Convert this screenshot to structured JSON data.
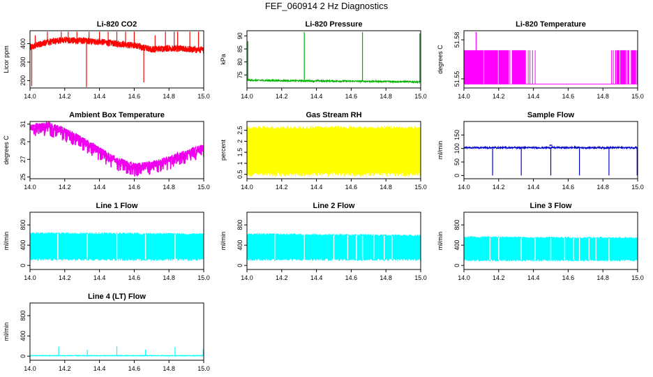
{
  "figure_title": "FEF_060914  2 Hz Diagnostics",
  "chart_data": [
    {
      "type": "line",
      "title": "Li-820 CO2",
      "ylabel": "Licor ppm",
      "color": "#ff0000",
      "style": "noisy",
      "xlim": [
        14.0,
        15.0
      ],
      "ylim": [
        160,
        470
      ],
      "yticks": [
        200,
        300,
        400
      ],
      "xticks": [
        14.0,
        14.2,
        14.4,
        14.6,
        14.8,
        15.0
      ],
      "series": [
        {
          "x": [
            14.0,
            14.1,
            14.2,
            14.3,
            14.4,
            14.5,
            14.6,
            14.7,
            14.8,
            14.9,
            15.0
          ],
          "y": [
            380,
            410,
            420,
            415,
            410,
            400,
            390,
            370,
            375,
            370,
            365
          ]
        }
      ],
      "band": 18,
      "spikes": [
        {
          "x": 14.01,
          "y": 170
        },
        {
          "x": 14.03,
          "y": 445
        },
        {
          "x": 14.1,
          "y": 465
        },
        {
          "x": 14.18,
          "y": 465
        },
        {
          "x": 14.22,
          "y": 465
        },
        {
          "x": 14.27,
          "y": 465
        },
        {
          "x": 14.325,
          "y": 165
        },
        {
          "x": 14.34,
          "y": 465
        },
        {
          "x": 14.4,
          "y": 465
        },
        {
          "x": 14.45,
          "y": 465
        },
        {
          "x": 14.5,
          "y": 465
        },
        {
          "x": 14.55,
          "y": 465
        },
        {
          "x": 14.6,
          "y": 465
        },
        {
          "x": 14.655,
          "y": 190
        },
        {
          "x": 14.72,
          "y": 445
        },
        {
          "x": 14.78,
          "y": 465
        },
        {
          "x": 14.83,
          "y": 465
        },
        {
          "x": 14.85,
          "y": 465
        },
        {
          "x": 14.92,
          "y": 465
        },
        {
          "x": 14.97,
          "y": 465
        }
      ]
    },
    {
      "type": "line",
      "title": "Li-820 Pressure",
      "ylabel": "kPa",
      "color": "#00b000",
      "style": "flat",
      "xlim": [
        14.0,
        15.0
      ],
      "ylim": [
        70,
        92
      ],
      "yticks": [
        75,
        80,
        85,
        90
      ],
      "xticks": [
        14.0,
        14.2,
        14.4,
        14.6,
        14.8,
        15.0
      ],
      "series": [
        {
          "x": [
            14.0,
            14.2,
            14.4,
            14.6,
            14.8,
            15.0
          ],
          "y": [
            73.0,
            72.8,
            72.7,
            72.6,
            72.5,
            72.3
          ]
        }
      ],
      "band": 0.3,
      "spikes": [
        {
          "x": 14.005,
          "y": 88
        },
        {
          "x": 14.33,
          "y": 91.5
        },
        {
          "x": 14.665,
          "y": 91.5
        },
        {
          "x": 14.995,
          "y": 91
        }
      ]
    },
    {
      "type": "line",
      "title": "Li-820 Temperature",
      "ylabel": "degrees C",
      "color": "#ff00ff",
      "style": "binary",
      "xlim": [
        14.0,
        15.0
      ],
      "ylim": [
        51.543,
        51.587
      ],
      "yticks": [
        51.55,
        51.58
      ],
      "extra_ytick_labels": [
        "51.55",
        "51.58"
      ],
      "xticks": [
        14.0,
        14.2,
        14.4,
        14.6,
        14.8,
        15.0
      ],
      "levels": [
        51.546,
        51.572
      ],
      "segments": [
        {
          "from": 14.0,
          "to": 14.36
        },
        {
          "from": 14.87,
          "to": 15.0
        }
      ],
      "spikes": [
        {
          "x": 14.07,
          "y": 51.586
        }
      ],
      "series": [
        {
          "x": [
            14.0,
            15.0
          ],
          "y": [
            51.546,
            51.546
          ]
        }
      ]
    },
    {
      "type": "line",
      "title": "Ambient Box Temperature",
      "ylabel": "degrees C",
      "color": "#ee00ee",
      "style": "noisy-down",
      "xlim": [
        14.0,
        15.0
      ],
      "ylim": [
        24.8,
        31.3
      ],
      "yticks": [
        25,
        27,
        29,
        31
      ],
      "xticks": [
        14.0,
        14.2,
        14.4,
        14.6,
        14.8,
        15.0
      ],
      "series": [
        {
          "x": [
            14.0,
            14.1,
            14.2,
            14.3,
            14.4,
            14.5,
            14.6,
            14.7,
            14.8,
            14.9,
            15.0
          ],
          "y": [
            30.6,
            30.9,
            30.2,
            29.2,
            28.0,
            26.9,
            26.2,
            26.4,
            27.0,
            27.7,
            28.4
          ]
        }
      ],
      "band": 0.4,
      "drop": 1.2
    },
    {
      "type": "line",
      "title": "Gas Stream RH",
      "ylabel": "percent",
      "color": "#ffff00",
      "style": "fill-noise",
      "xlim": [
        14.0,
        15.0
      ],
      "ylim": [
        0.3,
        2.9
      ],
      "yticks": [
        0.5,
        1.0,
        1.5,
        2.0,
        2.5
      ],
      "xticks": [
        14.0,
        14.2,
        14.4,
        14.6,
        14.8,
        15.0
      ],
      "series": [
        {
          "x": [
            14.0,
            15.0
          ],
          "y": [
            2.7,
            2.7
          ]
        }
      ],
      "low": 0.4,
      "high": 2.8
    },
    {
      "type": "line",
      "title": "Sample Flow",
      "ylabel": "ml/min",
      "color": "#0000cc",
      "style": "flat",
      "xlim": [
        14.0,
        15.0
      ],
      "ylim": [
        -12,
        200
      ],
      "yticks": [
        0,
        50,
        100,
        150
      ],
      "xticks": [
        14.0,
        14.2,
        14.4,
        14.6,
        14.8,
        15.0
      ],
      "series": [
        {
          "x": [
            14.0,
            15.0
          ],
          "y": [
            103,
            103
          ]
        }
      ],
      "band": 3,
      "spikes": [
        {
          "x": 14.165,
          "y": 0
        },
        {
          "x": 14.33,
          "y": 0
        },
        {
          "x": 14.5,
          "y": 0
        },
        {
          "x": 14.665,
          "y": 0
        },
        {
          "x": 14.835,
          "y": 0
        },
        {
          "x": 14.997,
          "y": 0
        }
      ],
      "bumps": [
        {
          "x": 14.5,
          "y": 112
        }
      ]
    },
    {
      "type": "line",
      "title": "Line 1 Flow",
      "ylabel": "ml/min",
      "color": "#00ffff",
      "style": "fill-noise",
      "xlim": [
        14.0,
        15.0
      ],
      "ylim": [
        -80,
        1050
      ],
      "yticks": [
        0,
        400,
        800
      ],
      "xticks": [
        14.0,
        14.2,
        14.4,
        14.6,
        14.8,
        15.0
      ],
      "series": [
        {
          "x": [
            14.0,
            15.0
          ],
          "y": [
            660,
            640
          ]
        }
      ],
      "low": 90,
      "high": 660,
      "gaps": [
        14.16,
        14.33,
        14.5,
        14.665,
        14.835
      ]
    },
    {
      "type": "line",
      "title": "Line 2 Flow",
      "ylabel": "ml/min",
      "color": "#00ffff",
      "style": "fill-noise",
      "xlim": [
        14.0,
        15.0
      ],
      "ylim": [
        -80,
        1050
      ],
      "yticks": [
        0,
        400,
        800
      ],
      "xticks": [
        14.0,
        14.2,
        14.4,
        14.6,
        14.8,
        15.0
      ],
      "series": [
        {
          "x": [
            14.0,
            15.0
          ],
          "y": [
            640,
            610
          ]
        }
      ],
      "low": 90,
      "high": 640,
      "gaps": [
        14.16,
        14.33,
        14.5,
        14.58,
        14.63,
        14.665,
        14.73,
        14.79,
        14.835
      ]
    },
    {
      "type": "line",
      "title": "Line 3 Flow",
      "ylabel": "ml/min",
      "color": "#00ffff",
      "style": "fill-noise",
      "xlim": [
        14.0,
        15.0
      ],
      "ylim": [
        -80,
        1050
      ],
      "yticks": [
        0,
        400,
        800
      ],
      "xticks": [
        14.0,
        14.2,
        14.4,
        14.6,
        14.8,
        15.0
      ],
      "series": [
        {
          "x": [
            14.0,
            15.0
          ],
          "y": [
            580,
            560
          ]
        }
      ],
      "low": 80,
      "high": 580,
      "gaps": [
        14.15,
        14.2,
        14.33,
        14.41,
        14.5,
        14.58,
        14.63,
        14.665,
        14.72,
        14.76,
        14.835
      ]
    },
    {
      "type": "line",
      "title": "Line 4 (LT) Flow",
      "ylabel": "ml/min",
      "color": "#00ffff",
      "style": "flat",
      "xlim": [
        14.0,
        15.0
      ],
      "ylim": [
        -80,
        1050
      ],
      "yticks": [
        0,
        400,
        800
      ],
      "xticks": [
        14.0,
        14.2,
        14.4,
        14.6,
        14.8,
        15.0
      ],
      "series": [
        {
          "x": [
            14.0,
            15.0
          ],
          "y": [
            10,
            10
          ]
        }
      ],
      "band": 6,
      "spikes": [
        {
          "x": 14.165,
          "y": 190
        },
        {
          "x": 14.33,
          "y": 130
        },
        {
          "x": 14.5,
          "y": 200
        },
        {
          "x": 14.665,
          "y": 130
        },
        {
          "x": 14.835,
          "y": 180
        },
        {
          "x": 14.997,
          "y": 140
        }
      ]
    }
  ]
}
